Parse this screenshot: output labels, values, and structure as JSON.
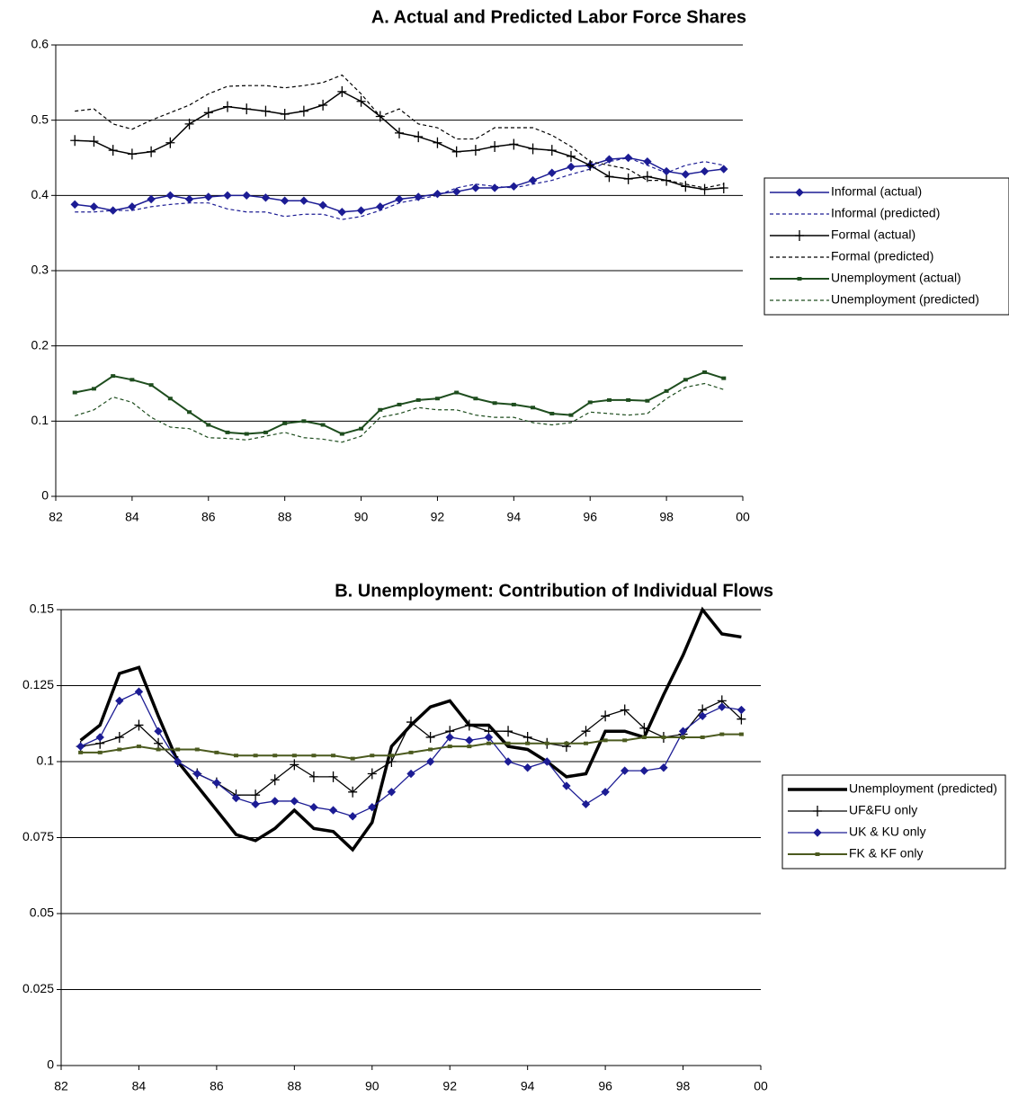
{
  "chart_data": [
    {
      "type": "line",
      "title": "A. Actual and Predicted Labor Force Shares",
      "x": [
        1982.5,
        1983,
        1983.5,
        1984,
        1984.5,
        1985,
        1985.5,
        1986,
        1986.5,
        1987,
        1987.5,
        1988,
        1988.5,
        1989,
        1989.5,
        1990,
        1990.5,
        1991,
        1991.5,
        1992,
        1992.5,
        1993,
        1993.5,
        1994,
        1994.5,
        1995,
        1995.5,
        1996,
        1996.5,
        1997,
        1997.5,
        1998,
        1998.5,
        1999,
        1999.5
      ],
      "xlim": [
        1982,
        2000
      ],
      "xticks": [
        {
          "value": 1982,
          "label": "82"
        },
        {
          "value": 1984,
          "label": "84"
        },
        {
          "value": 1986,
          "label": "86"
        },
        {
          "value": 1988,
          "label": "88"
        },
        {
          "value": 1990,
          "label": "90"
        },
        {
          "value": 1992,
          "label": "92"
        },
        {
          "value": 1994,
          "label": "94"
        },
        {
          "value": 1996,
          "label": "96"
        },
        {
          "value": 1998,
          "label": "98"
        },
        {
          "value": 2000,
          "label": "00"
        }
      ],
      "ylim": [
        0,
        0.6
      ],
      "yticks": [
        0,
        0.1,
        0.2,
        0.3,
        0.4,
        0.5,
        0.6
      ],
      "grid": true,
      "legend": "right",
      "series": [
        {
          "name": "Informal (actual)",
          "color": "#1c1c94",
          "marker": "diamond",
          "dash": false,
          "width": 1.5,
          "values": [
            0.388,
            0.385,
            0.38,
            0.385,
            0.395,
            0.4,
            0.395,
            0.398,
            0.4,
            0.4,
            0.397,
            0.393,
            0.393,
            0.387,
            0.378,
            0.38,
            0.385,
            0.395,
            0.398,
            0.402,
            0.405,
            0.41,
            0.41,
            0.412,
            0.42,
            0.43,
            0.438,
            0.44,
            0.448,
            0.45,
            0.445,
            0.432,
            0.428,
            0.432,
            0.435
          ]
        },
        {
          "name": "Informal (predicted)",
          "color": "#1c1c94",
          "marker": "none",
          "dash": true,
          "width": 1.2,
          "values": [
            0.378,
            0.378,
            0.38,
            0.38,
            0.385,
            0.388,
            0.39,
            0.39,
            0.382,
            0.378,
            0.378,
            0.372,
            0.375,
            0.375,
            0.368,
            0.372,
            0.38,
            0.39,
            0.395,
            0.4,
            0.41,
            0.415,
            0.412,
            0.41,
            0.415,
            0.42,
            0.428,
            0.435,
            0.445,
            0.45,
            0.44,
            0.43,
            0.44,
            0.445,
            0.44
          ]
        },
        {
          "name": "Formal (actual)",
          "color": "#000000",
          "marker": "plus",
          "dash": false,
          "width": 1.5,
          "values": [
            0.473,
            0.472,
            0.46,
            0.455,
            0.458,
            0.47,
            0.495,
            0.51,
            0.518,
            0.515,
            0.512,
            0.508,
            0.512,
            0.52,
            0.538,
            0.525,
            0.505,
            0.483,
            0.478,
            0.47,
            0.458,
            0.46,
            0.465,
            0.468,
            0.462,
            0.46,
            0.452,
            0.44,
            0.425,
            0.422,
            0.425,
            0.42,
            0.412,
            0.408,
            0.41
          ]
        },
        {
          "name": "Formal (predicted)",
          "color": "#000000",
          "marker": "none",
          "dash": true,
          "width": 1.2,
          "values": [
            0.512,
            0.515,
            0.495,
            0.488,
            0.5,
            0.51,
            0.52,
            0.535,
            0.545,
            0.546,
            0.546,
            0.543,
            0.546,
            0.55,
            0.56,
            0.535,
            0.505,
            0.515,
            0.495,
            0.49,
            0.475,
            0.475,
            0.49,
            0.49,
            0.49,
            0.48,
            0.465,
            0.445,
            0.44,
            0.435,
            0.42,
            0.42,
            0.415,
            0.41,
            0.415
          ]
        },
        {
          "name": "Unemployment (actual)",
          "color": "#1e4d1e",
          "marker": "square",
          "dash": false,
          "width": 2,
          "values": [
            0.138,
            0.143,
            0.16,
            0.155,
            0.148,
            0.13,
            0.112,
            0.095,
            0.085,
            0.083,
            0.085,
            0.097,
            0.1,
            0.095,
            0.083,
            0.09,
            0.115,
            0.122,
            0.128,
            0.13,
            0.138,
            0.13,
            0.124,
            0.122,
            0.118,
            0.11,
            0.108,
            0.125,
            0.128,
            0.128,
            0.127,
            0.14,
            0.155,
            0.165,
            0.157
          ]
        },
        {
          "name": "Unemployment (predicted)",
          "color": "#1e4d1e",
          "marker": "none",
          "dash": true,
          "width": 1.2,
          "values": [
            0.107,
            0.115,
            0.132,
            0.125,
            0.105,
            0.092,
            0.09,
            0.078,
            0.077,
            0.075,
            0.08,
            0.085,
            0.078,
            0.076,
            0.072,
            0.08,
            0.105,
            0.11,
            0.118,
            0.115,
            0.115,
            0.108,
            0.105,
            0.105,
            0.098,
            0.095,
            0.098,
            0.112,
            0.11,
            0.108,
            0.11,
            0.13,
            0.145,
            0.15,
            0.142
          ]
        }
      ]
    },
    {
      "type": "line",
      "title": "B. Unemployment: Contribution of Individual Flows",
      "x": [
        1982.5,
        1983,
        1983.5,
        1984,
        1984.5,
        1985,
        1985.5,
        1986,
        1986.5,
        1987,
        1987.5,
        1988,
        1988.5,
        1989,
        1989.5,
        1990,
        1990.5,
        1991,
        1991.5,
        1992,
        1992.5,
        1993,
        1993.5,
        1994,
        1994.5,
        1995,
        1995.5,
        1996,
        1996.5,
        1997,
        1997.5,
        1998,
        1998.5,
        1999,
        1999.5
      ],
      "xlim": [
        1982,
        2000
      ],
      "xticks": [
        {
          "value": 1982,
          "label": "82"
        },
        {
          "value": 1984,
          "label": "84"
        },
        {
          "value": 1986,
          "label": "86"
        },
        {
          "value": 1988,
          "label": "88"
        },
        {
          "value": 1990,
          "label": "90"
        },
        {
          "value": 1992,
          "label": "92"
        },
        {
          "value": 1994,
          "label": "94"
        },
        {
          "value": 1996,
          "label": "96"
        },
        {
          "value": 1998,
          "label": "98"
        },
        {
          "value": 2000,
          "label": "00"
        }
      ],
      "ylim": [
        0,
        0.15
      ],
      "yticks": [
        0,
        0.025,
        0.05,
        0.075,
        0.1,
        0.125,
        0.15
      ],
      "grid": true,
      "legend": "right",
      "series": [
        {
          "name": "Unemployment (predicted)",
          "color": "#000000",
          "marker": "none",
          "dash": false,
          "width": 3.5,
          "values": [
            0.107,
            0.112,
            0.129,
            0.131,
            0.115,
            0.1,
            0.092,
            0.084,
            0.076,
            0.074,
            0.078,
            0.084,
            0.078,
            0.077,
            0.071,
            0.08,
            0.105,
            0.112,
            0.118,
            0.12,
            0.112,
            0.112,
            0.105,
            0.104,
            0.1,
            0.095,
            0.096,
            0.11,
            0.11,
            0.108,
            0.122,
            0.135,
            0.15,
            0.142,
            0.141
          ]
        },
        {
          "name": "UF&FU only",
          "color": "#000000",
          "marker": "plus",
          "dash": false,
          "width": 1.3,
          "values": [
            0.105,
            0.106,
            0.108,
            0.112,
            0.106,
            0.1,
            0.096,
            0.093,
            0.089,
            0.089,
            0.094,
            0.099,
            0.095,
            0.095,
            0.09,
            0.096,
            0.1,
            0.113,
            0.108,
            0.11,
            0.112,
            0.11,
            0.11,
            0.108,
            0.106,
            0.105,
            0.11,
            0.115,
            0.117,
            0.111,
            0.108,
            0.109,
            0.117,
            0.12,
            0.114
          ]
        },
        {
          "name": "UK & KU only",
          "color": "#1c1c94",
          "marker": "diamond",
          "dash": false,
          "width": 1.3,
          "values": [
            0.105,
            0.108,
            0.12,
            0.123,
            0.11,
            0.1,
            0.096,
            0.093,
            0.088,
            0.086,
            0.087,
            0.087,
            0.085,
            0.084,
            0.082,
            0.085,
            0.09,
            0.096,
            0.1,
            0.108,
            0.107,
            0.108,
            0.1,
            0.098,
            0.1,
            0.092,
            0.086,
            0.09,
            0.097,
            0.097,
            0.098,
            0.11,
            0.115,
            0.118,
            0.117
          ]
        },
        {
          "name": "FK & KF only",
          "color": "#4b5a1f",
          "marker": "square",
          "dash": false,
          "width": 2,
          "values": [
            0.103,
            0.103,
            0.104,
            0.105,
            0.104,
            0.104,
            0.104,
            0.103,
            0.102,
            0.102,
            0.102,
            0.102,
            0.102,
            0.102,
            0.101,
            0.102,
            0.102,
            0.103,
            0.104,
            0.105,
            0.105,
            0.106,
            0.106,
            0.106,
            0.106,
            0.106,
            0.106,
            0.107,
            0.107,
            0.108,
            0.108,
            0.108,
            0.108,
            0.109,
            0.109
          ]
        }
      ]
    }
  ]
}
